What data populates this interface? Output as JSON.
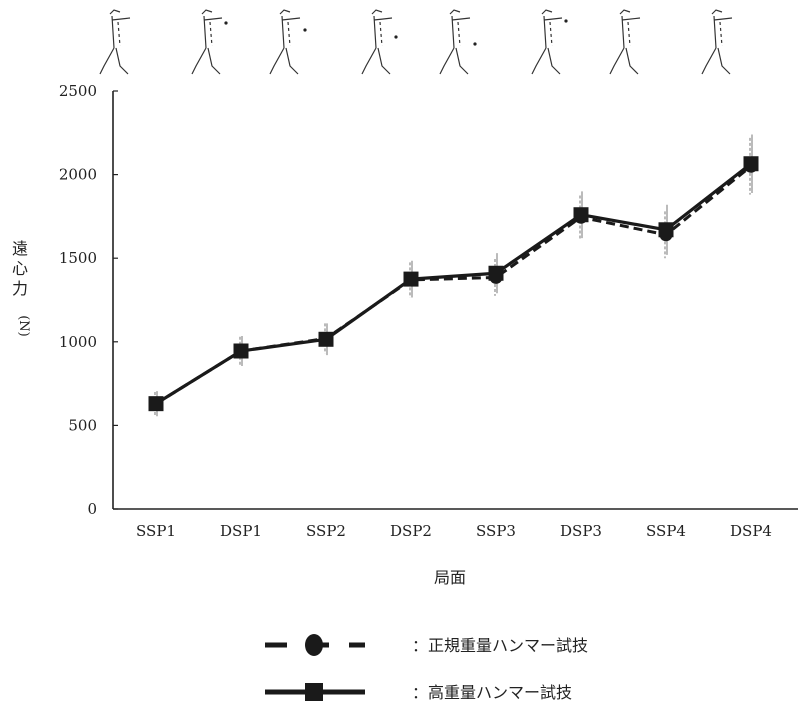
{
  "chart_data": {
    "type": "line",
    "title": "",
    "xlabel": "局面",
    "ylabel_chars": [
      "遠",
      "心",
      "力"
    ],
    "ylabel_unit": "(N)",
    "categories": [
      "SSP1",
      "DSP1",
      "SSP2",
      "DSP2",
      "SSP3",
      "DSP3",
      "SSP4",
      "DSP4"
    ],
    "ylim": [
      0,
      2500
    ],
    "yticks": [
      "0",
      "500",
      "1000",
      "1500",
      "2000",
      "2500"
    ],
    "grid": false,
    "legend_position": "bottom",
    "series": [
      {
        "name": "：正規重量ハンマー試技",
        "style": "dashed",
        "marker": "circle",
        "color": "#1a1a1a",
        "values": [
          630,
          945,
          1020,
          1370,
          1385,
          1745,
          1640,
          2050
        ],
        "sd": [
          70,
          85,
          90,
          105,
          110,
          130,
          140,
          170
        ]
      },
      {
        "name": "：高重量ハンマー試技",
        "style": "solid",
        "marker": "square",
        "color": "#1a1a1a",
        "values": [
          630,
          945,
          1015,
          1375,
          1410,
          1760,
          1670,
          2065
        ],
        "sd": [
          75,
          90,
          95,
          110,
          120,
          140,
          150,
          175
        ]
      }
    ],
    "figure_row": {
      "description_icons": [
        "athlete-phase-figure-icon"
      ],
      "count": 8
    }
  }
}
